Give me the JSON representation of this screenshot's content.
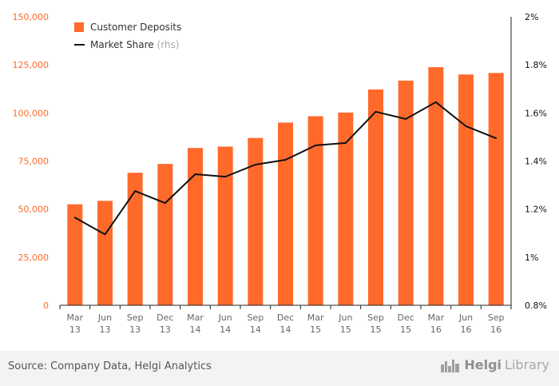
{
  "chart_data": {
    "type": "bar",
    "categories": [
      [
        "Mar",
        "13"
      ],
      [
        "Jun",
        "13"
      ],
      [
        "Sep",
        "13"
      ],
      [
        "Dec",
        "13"
      ],
      [
        "Mar",
        "14"
      ],
      [
        "Jun",
        "14"
      ],
      [
        "Sep",
        "14"
      ],
      [
        "Dec",
        "14"
      ],
      [
        "Mar",
        "15"
      ],
      [
        "Jun",
        "15"
      ],
      [
        "Sep",
        "15"
      ],
      [
        "Dec",
        "15"
      ],
      [
        "Mar",
        "16"
      ],
      [
        "Jun",
        "16"
      ],
      [
        "Sep",
        "16"
      ]
    ],
    "series": [
      {
        "name": "Customer Deposits",
        "type": "bar",
        "axis": "left",
        "color": "#ff6a2b",
        "values": [
          52500,
          54300,
          68900,
          73500,
          81800,
          82500,
          87000,
          95000,
          98300,
          100200,
          112200,
          116800,
          123800,
          120000,
          120800
        ]
      },
      {
        "name": "Market Share",
        "legend_suffix": "(rhs)",
        "type": "line",
        "axis": "right",
        "color": "#111111",
        "values": [
          1.165,
          1.095,
          1.275,
          1.225,
          1.345,
          1.335,
          1.385,
          1.405,
          1.465,
          1.475,
          1.605,
          1.575,
          1.645,
          1.545,
          1.495
        ]
      }
    ],
    "y_left": {
      "ylim": [
        0,
        150000
      ],
      "ticks": [
        0,
        25000,
        50000,
        75000,
        100000,
        125000,
        150000
      ],
      "tick_labels": [
        "0",
        "25,000",
        "50,000",
        "75,000",
        "100,000",
        "125,000",
        "150,000"
      ],
      "color": "#ff6a2b"
    },
    "y_right": {
      "ylim": [
        0.8,
        2.0
      ],
      "ticks": [
        0.8,
        1.0,
        1.2,
        1.4,
        1.6,
        1.8,
        2.0
      ],
      "tick_labels": [
        "0.8%",
        "1%",
        "1.2%",
        "1.4%",
        "1.6%",
        "1.8%",
        "2%"
      ],
      "color": "#111111"
    },
    "grid": false,
    "legend_position": "top-left"
  },
  "footer": {
    "source": "Source: Company Data, Helgi Analytics",
    "brand_strong": "Helgi",
    "brand_light": "Library"
  },
  "colors": {
    "bar": "#ff6a2b",
    "line": "#111111",
    "axis_text": "#666666",
    "footer_bg": "#f3f3f3"
  }
}
